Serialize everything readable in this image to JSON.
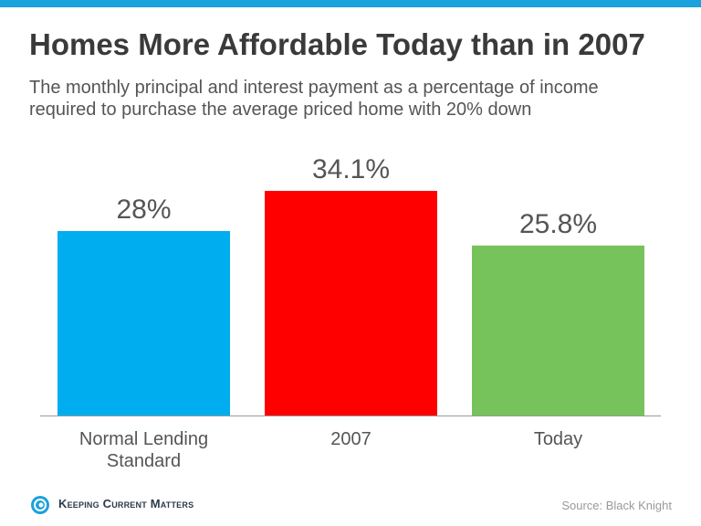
{
  "chart_data": {
    "type": "bar",
    "title": "Homes More Affordable Today than in 2007",
    "subtitle": "The monthly principal and interest payment as a percentage of income required to purchase the average priced home with 20% down",
    "categories": [
      "Normal Lending Standard",
      "2007",
      "Today"
    ],
    "values": [
      28,
      34.1,
      25.8
    ],
    "value_labels": [
      "28%",
      "34.1%",
      "25.8%"
    ],
    "colors": [
      "#00aeef",
      "#ff0000",
      "#77c35b"
    ],
    "brand": "Keeping Current Matters",
    "source": "Source: Black Knight"
  }
}
